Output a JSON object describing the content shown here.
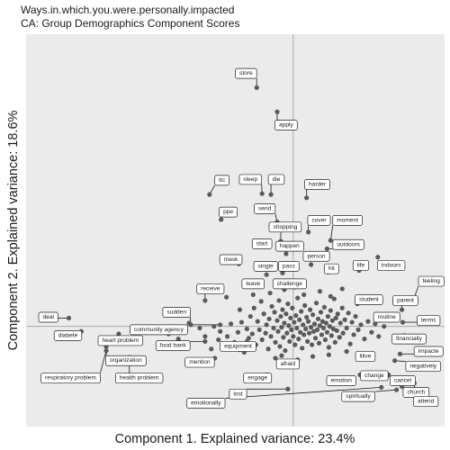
{
  "chart_data": {
    "type": "scatter",
    "title": "Ways.in.which.you.were.personally.impacted",
    "subtitle": "CA: Group Demographics Component Scores",
    "xlabel": "Component 1. Explained variance: 23.4%",
    "ylabel": "Component 2. Explained variance: 18.6%",
    "xlim": [
      -3.0,
      1.7
    ],
    "ylim": [
      -1.2,
      3.5
    ],
    "reference_lines": {
      "x": 0,
      "y": 0
    },
    "grid": false,
    "colors": {
      "panel": "#ebebeb",
      "points": "#5a5a5a",
      "reference_line": "#aaaaaa"
    },
    "labeled_points": [
      {
        "label": "store",
        "x": -0.41,
        "y": 2.86,
        "lx": -0.53,
        "ly": 3.03
      },
      {
        "label": "apply",
        "x": -0.18,
        "y": 2.57,
        "lx": -0.08,
        "ly": 2.41
      },
      {
        "label": "ttc",
        "x": -0.94,
        "y": 1.58,
        "lx": -0.8,
        "ly": 1.75
      },
      {
        "label": "sleep",
        "x": -0.35,
        "y": 1.59,
        "lx": -0.48,
        "ly": 1.76
      },
      {
        "label": "die",
        "x": -0.25,
        "y": 1.58,
        "lx": -0.19,
        "ly": 1.76
      },
      {
        "label": "harder",
        "x": 0.15,
        "y": 1.54,
        "lx": 0.27,
        "ly": 1.7
      },
      {
        "label": "ppe",
        "x": -0.81,
        "y": 1.28,
        "lx": -0.73,
        "ly": 1.37
      },
      {
        "label": "send",
        "x": -0.18,
        "y": 1.25,
        "lx": -0.32,
        "ly": 1.41
      },
      {
        "label": "cover",
        "x": 0.17,
        "y": 1.13,
        "lx": 0.29,
        "ly": 1.27
      },
      {
        "label": "moment",
        "x": 0.42,
        "y": 1.03,
        "lx": 0.61,
        "ly": 1.27
      },
      {
        "label": "shopping",
        "x": -0.14,
        "y": 1.02,
        "lx": -0.09,
        "ly": 1.19
      },
      {
        "label": "start",
        "x": -0.35,
        "y": 0.96,
        "lx": -0.35,
        "ly": 0.99
      },
      {
        "label": "happen",
        "x": -0.08,
        "y": 0.87,
        "lx": -0.04,
        "ly": 0.96
      },
      {
        "label": "outdoors",
        "x": 0.38,
        "y": 0.93,
        "lx": 0.62,
        "ly": 0.98
      },
      {
        "label": "person",
        "x": 0.2,
        "y": 0.74,
        "lx": 0.26,
        "ly": 0.84
      },
      {
        "label": "mask",
        "x": -0.61,
        "y": 0.75,
        "lx": -0.7,
        "ly": 0.8
      },
      {
        "label": "single",
        "x": -0.3,
        "y": 0.62,
        "lx": -0.31,
        "ly": 0.72
      },
      {
        "label": "pass",
        "x": -0.12,
        "y": 0.64,
        "lx": -0.05,
        "ly": 0.72
      },
      {
        "label": "hit",
        "x": 0.39,
        "y": 0.65,
        "lx": 0.43,
        "ly": 0.69
      },
      {
        "label": "life",
        "x": 0.74,
        "y": 0.67,
        "lx": 0.76,
        "ly": 0.73
      },
      {
        "label": "indoors",
        "x": 0.95,
        "y": 0.83,
        "lx": 1.1,
        "ly": 0.73
      },
      {
        "label": "leave",
        "x": -0.37,
        "y": 0.5,
        "lx": -0.45,
        "ly": 0.51
      },
      {
        "label": "challenge",
        "x": -0.05,
        "y": 0.51,
        "lx": -0.04,
        "ly": 0.51
      },
      {
        "label": "feeling",
        "x": 1.35,
        "y": 0.32,
        "lx": 1.55,
        "ly": 0.54
      },
      {
        "label": "receive",
        "x": -0.99,
        "y": 0.31,
        "lx": -0.93,
        "ly": 0.45
      },
      {
        "label": "student",
        "x": 0.72,
        "y": 0.27,
        "lx": 0.85,
        "ly": 0.32
      },
      {
        "label": "parent",
        "x": 1.22,
        "y": 0.2,
        "lx": 1.26,
        "ly": 0.31
      },
      {
        "label": "sudden",
        "x": -1.15,
        "y": 0.02,
        "lx": -1.31,
        "ly": 0.17
      },
      {
        "label": "routine",
        "x": 0.98,
        "y": 0.1,
        "lx": 1.05,
        "ly": 0.11
      },
      {
        "label": "terms",
        "x": 1.23,
        "y": 0.05,
        "lx": 1.52,
        "ly": 0.07
      },
      {
        "label": "deal",
        "x": -2.52,
        "y": 0.1,
        "lx": -2.75,
        "ly": 0.11
      },
      {
        "label": "community agency",
        "x": -0.82,
        "y": 0.02,
        "lx": -1.51,
        "ly": -0.04
      },
      {
        "label": "diabete",
        "x": -2.38,
        "y": -0.06,
        "lx": -2.53,
        "ly": -0.11
      },
      {
        "label": "heart problem",
        "x": -1.96,
        "y": -0.09,
        "lx": -1.94,
        "ly": -0.17
      },
      {
        "label": "financially",
        "x": 1.25,
        "y": -0.11,
        "lx": 1.3,
        "ly": -0.15
      },
      {
        "label": "food bank",
        "x": -0.99,
        "y": -0.18,
        "lx": -1.35,
        "ly": -0.23
      },
      {
        "label": "equipment",
        "x": -0.52,
        "y": -0.18,
        "lx": -0.62,
        "ly": -0.24
      },
      {
        "label": "impacte",
        "x": 1.2,
        "y": -0.33,
        "lx": 1.52,
        "ly": -0.3
      },
      {
        "label": "lilive",
        "x": 0.78,
        "y": -0.33,
        "lx": 0.81,
        "ly": -0.36
      },
      {
        "label": "organization",
        "x": -2.1,
        "y": -0.24,
        "lx": -1.88,
        "ly": -0.41
      },
      {
        "label": "mention",
        "x": -0.88,
        "y": -0.38,
        "lx": -1.05,
        "ly": -0.43
      },
      {
        "label": "negatively",
        "x": 1.14,
        "y": -0.41,
        "lx": 1.46,
        "ly": -0.48
      },
      {
        "label": "afraid",
        "x": -0.13,
        "y": -0.35,
        "lx": -0.06,
        "ly": -0.45
      },
      {
        "label": "change",
        "x": 0.75,
        "y": -0.58,
        "lx": 0.91,
        "ly": -0.59
      },
      {
        "label": "respiratory problem",
        "x": -2.1,
        "y": -0.29,
        "lx": -2.5,
        "ly": -0.62
      },
      {
        "label": "health problem",
        "x": -1.84,
        "y": -0.37,
        "lx": -1.73,
        "ly": -0.62
      },
      {
        "label": "engage",
        "x": -0.29,
        "y": -0.58,
        "lx": -0.4,
        "ly": -0.62
      },
      {
        "label": "emotion",
        "x": 0.5,
        "y": -0.62,
        "lx": 0.54,
        "ly": -0.65
      },
      {
        "label": "cancel",
        "x": 1.07,
        "y": -0.58,
        "lx": 1.23,
        "ly": -0.65
      },
      {
        "label": "lost",
        "x": -0.06,
        "y": -0.75,
        "lx": -0.62,
        "ly": -0.81
      },
      {
        "label": "church",
        "x": 1.36,
        "y": -0.68,
        "lx": 1.38,
        "ly": -0.79
      },
      {
        "label": "spiritually",
        "x": 1.16,
        "y": -0.76,
        "lx": 0.73,
        "ly": -0.84
      },
      {
        "label": "attend",
        "x": 1.22,
        "y": -0.72,
        "lx": 1.49,
        "ly": -0.9
      },
      {
        "label": "emotionally",
        "x": 0.99,
        "y": -0.73,
        "lx": -0.98,
        "ly": -0.92
      }
    ],
    "unlabeled_points": [
      [
        -1.4,
        -0.09
      ],
      [
        -1.29,
        -0.15
      ],
      [
        -1.17,
        0.04
      ],
      [
        -1.05,
        -0.02
      ],
      [
        -0.99,
        -0.12
      ],
      [
        -0.92,
        -0.27
      ],
      [
        -0.89,
        0.0
      ],
      [
        -0.84,
        -0.16
      ],
      [
        -0.82,
        -0.06
      ],
      [
        -0.79,
        -0.24
      ],
      [
        -0.74,
        -0.12
      ],
      [
        -0.7,
        0.03
      ],
      [
        -0.66,
        -0.19
      ],
      [
        -0.62,
        -0.07
      ],
      [
        -0.6,
        0.2
      ],
      [
        -0.58,
        0.05
      ],
      [
        -0.55,
        -0.31
      ],
      [
        -0.52,
        -0.03
      ],
      [
        -0.5,
        -0.14
      ],
      [
        -0.48,
        0.12
      ],
      [
        -0.46,
        -0.09
      ],
      [
        -0.44,
        0.22
      ],
      [
        -0.42,
        -0.22
      ],
      [
        -0.4,
        0.06
      ],
      [
        -0.38,
        -0.04
      ],
      [
        -0.36,
        0.3
      ],
      [
        -0.35,
        -0.16
      ],
      [
        -0.33,
        0.15
      ],
      [
        -0.31,
        -0.08
      ],
      [
        -0.3,
        0.02
      ],
      [
        -0.28,
        -0.27
      ],
      [
        -0.27,
        0.09
      ],
      [
        -0.25,
        -0.12
      ],
      [
        -0.24,
        0.24
      ],
      [
        -0.22,
        -0.02
      ],
      [
        -0.21,
        0.17
      ],
      [
        -0.2,
        -0.19
      ],
      [
        -0.18,
        0.07
      ],
      [
        -0.17,
        -0.06
      ],
      [
        -0.16,
        0.31
      ],
      [
        -0.15,
        -0.24
      ],
      [
        -0.14,
        0.12
      ],
      [
        -0.13,
        -0.01
      ],
      [
        -0.12,
        0.2
      ],
      [
        -0.11,
        -0.13
      ],
      [
        -0.1,
        0.04
      ],
      [
        -0.09,
        -0.29
      ],
      [
        -0.08,
        0.15
      ],
      [
        -0.07,
        -0.08
      ],
      [
        -0.06,
        0.27
      ],
      [
        -0.05,
        0.01
      ],
      [
        -0.04,
        -0.18
      ],
      [
        -0.03,
        0.1
      ],
      [
        -0.02,
        -0.04
      ],
      [
        -0.01,
        0.22
      ],
      [
        0.0,
        -0.12
      ],
      [
        0.01,
        0.05
      ],
      [
        0.02,
        -0.22
      ],
      [
        0.03,
        0.13
      ],
      [
        0.04,
        -0.02
      ],
      [
        0.05,
        0.34
      ],
      [
        0.06,
        -0.15
      ],
      [
        0.07,
        0.08
      ],
      [
        0.08,
        -0.07
      ],
      [
        0.09,
        0.18
      ],
      [
        0.1,
        -0.26
      ],
      [
        0.11,
        0.02
      ],
      [
        0.12,
        -0.1
      ],
      [
        0.13,
        0.25
      ],
      [
        0.14,
        -0.03
      ],
      [
        0.15,
        0.11
      ],
      [
        0.16,
        -0.18
      ],
      [
        0.17,
        0.06
      ],
      [
        0.18,
        -0.08
      ],
      [
        0.19,
        0.2
      ],
      [
        0.2,
        -0.01
      ],
      [
        0.21,
        -0.22
      ],
      [
        0.22,
        0.14
      ],
      [
        0.23,
        -0.06
      ],
      [
        0.24,
        0.03
      ],
      [
        0.25,
        -0.14
      ],
      [
        0.26,
        0.28
      ],
      [
        0.27,
        -0.04
      ],
      [
        0.28,
        0.09
      ],
      [
        0.29,
        -0.2
      ],
      [
        0.3,
        0.01
      ],
      [
        0.31,
        0.17
      ],
      [
        0.32,
        -0.1
      ],
      [
        0.33,
        0.06
      ],
      [
        0.34,
        -0.02
      ],
      [
        0.35,
        0.23
      ],
      [
        0.36,
        -0.16
      ],
      [
        0.37,
        0.04
      ],
      [
        0.38,
        -0.07
      ],
      [
        0.39,
        0.12
      ],
      [
        0.4,
        -0.25
      ],
      [
        0.41,
        0.0
      ],
      [
        0.42,
        0.19
      ],
      [
        0.43,
        -0.11
      ],
      [
        0.44,
        0.07
      ],
      [
        0.45,
        -0.03
      ],
      [
        0.46,
        0.33
      ],
      [
        0.47,
        -0.19
      ],
      [
        0.48,
        0.1
      ],
      [
        0.49,
        -0.05
      ],
      [
        0.5,
        0.15
      ],
      [
        0.52,
        -0.13
      ],
      [
        0.53,
        0.04
      ],
      [
        0.55,
        0.22
      ],
      [
        0.56,
        -0.08
      ],
      [
        0.58,
        0.08
      ],
      [
        0.6,
        -0.02
      ],
      [
        0.62,
        0.16
      ],
      [
        0.64,
        -0.21
      ],
      [
        0.66,
        0.05
      ],
      [
        0.68,
        -0.1
      ],
      [
        0.7,
        0.12
      ],
      [
        0.73,
        -0.04
      ],
      [
        0.76,
        0.02
      ],
      [
        0.8,
        -0.15
      ],
      [
        0.84,
        0.06
      ],
      [
        0.88,
        -0.07
      ],
      [
        0.92,
        0.03
      ],
      [
        0.96,
        -0.12
      ],
      [
        1.02,
        0.0
      ],
      [
        -0.26,
        0.4
      ],
      [
        -0.1,
        0.44
      ],
      [
        0.02,
        0.47
      ],
      [
        0.12,
        0.38
      ],
      [
        0.3,
        0.42
      ],
      [
        0.42,
        0.36
      ],
      [
        0.55,
        0.45
      ],
      [
        -0.45,
        0.38
      ],
      [
        0.22,
        -0.36
      ],
      [
        0.05,
        -0.4
      ],
      [
        -0.2,
        -0.38
      ],
      [
        0.4,
        -0.34
      ],
      [
        0.6,
        -0.3
      ],
      [
        -0.6,
        -0.28
      ],
      [
        -0.75,
        0.35
      ]
    ]
  }
}
